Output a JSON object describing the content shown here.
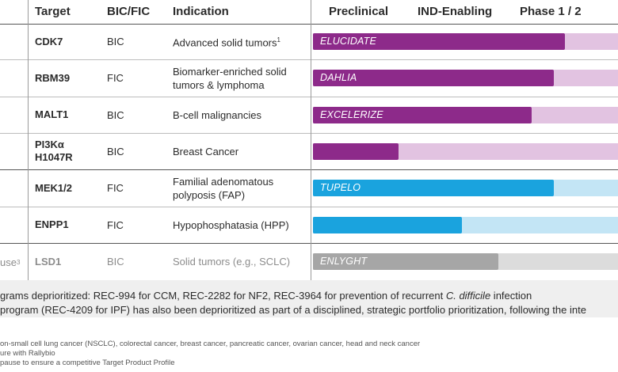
{
  "headers": {
    "target": "Target",
    "bic_fic": "BIC/FIC",
    "indication": "Indication",
    "preclinical": "Preclinical",
    "ind_enabling": "IND-Enabling",
    "phase12": "Phase 1 / 2"
  },
  "rows": [
    {
      "target": "CDK7",
      "bic": "BIC",
      "indication": "Advanced solid tumors",
      "sup": "1",
      "trial": "ELUCIDATE",
      "progress": 0.795,
      "color": "#8d2a8a",
      "track": "#e2c3e1"
    },
    {
      "target": "RBM39",
      "bic": "FIC",
      "indication": "Biomarker-enriched solid tumors & lymphoma",
      "sup": "",
      "trial": "DAHLIA",
      "progress": 0.76,
      "color": "#8d2a8a",
      "track": "#e2c3e1"
    },
    {
      "target": "MALT1",
      "bic": "BIC",
      "indication": "B-cell malignancies",
      "sup": "",
      "trial": "EXCELERIZE",
      "progress": 0.69,
      "color": "#8d2a8a",
      "track": "#e2c3e1"
    },
    {
      "target": "PI3Kα H1047R",
      "bic": "BIC",
      "indication": "Breast Cancer",
      "sup": "",
      "trial": "",
      "progress": 0.27,
      "color": "#8d2a8a",
      "track": "#e2c3e1"
    },
    {
      "target": "MEK1/2",
      "bic": "FIC",
      "indication": "Familial adenomatous polyposis (FAP)",
      "sup": "",
      "trial": "TUPELO",
      "progress": 0.76,
      "color": "#1aa3de",
      "track": "#c3e5f5"
    },
    {
      "target": "ENPP1",
      "bic": "FIC",
      "indication": "Hypophosphatasia (HPP)",
      "sup": "",
      "trial": "",
      "progress": 0.47,
      "color": "#1aa3de",
      "track": "#c3e5f5"
    },
    {
      "target": "LSD1",
      "bic": "BIC",
      "indication": "Solid tumors (e.g., SCLC)",
      "sup": "",
      "trial": "ENLYGHT",
      "progress": 0.585,
      "color": "#a6a6a6",
      "track": "#dcdcdc"
    }
  ],
  "left_edge": {
    "text": "use",
    "sup": "3"
  },
  "footer": {
    "line1_a": "grams deprioritized: REC-994 for CCM, REC-2282 for NF2, REC-3964 for prevention of recurrent ",
    "line1_b": "C. difficile",
    "line1_c": " infection",
    "line2": "program (REC-4209 for IPF) has also been deprioritized as part of a disciplined, strategic portfolio prioritization, following the inte"
  },
  "footnotes": [
    "on-small cell lung cancer (NSCLC), colorectal cancer, breast cancer, pancreatic cancer, ovarian cancer, head and neck cancer",
    "ure with Rallybio",
    "pause to ensure a competitive Target Product Profile"
  ]
}
